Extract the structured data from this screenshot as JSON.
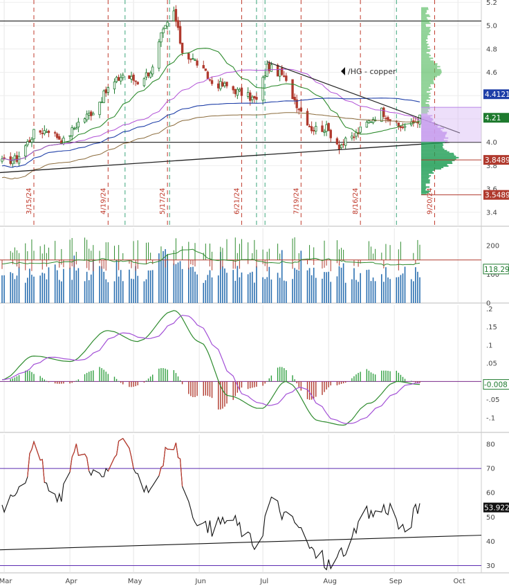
{
  "chart_data": [
    {
      "type": "candlestick",
      "annotation": "/HG - copper",
      "x_tick_labels": [
        "Mar",
        "Apr",
        "May",
        "Jun",
        "Jul",
        "Aug",
        "Sep",
        "Oct"
      ],
      "y_ticks": [
        3.4,
        3.6,
        3.8,
        4,
        4.2,
        4.4,
        4.6,
        4.8,
        5,
        5.2
      ],
      "ylim": [
        3.28,
        5.22
      ],
      "vertical_date_labels": [
        "3/15/24",
        "4/19/24",
        "5/17/24",
        "6/21/24",
        "7/19/24",
        "8/16/24",
        "9/20/24"
      ],
      "horizontal_levels": [
        5.04,
        4.0
      ],
      "price_tags": [
        {
          "label": "4.4121",
          "value": 4.4121,
          "color": "#1f3fa8"
        },
        {
          "label": "4.21",
          "value": 4.21,
          "color": "#1e7a2e"
        },
        {
          "label": "3.8489",
          "value": 3.8489,
          "color": "#b03a2e"
        },
        {
          "label": "3.5489",
          "value": 3.5489,
          "color": "#b03a2e"
        }
      ],
      "close_anchors": [
        {
          "date": "2024-02-29",
          "value": 3.83
        },
        {
          "date": "2024-03-07",
          "value": 3.86
        },
        {
          "date": "2024-03-15",
          "value": 4.08
        },
        {
          "date": "2024-03-22",
          "value": 4.11
        },
        {
          "date": "2024-03-29",
          "value": 4.01
        },
        {
          "date": "2024-04-05",
          "value": 4.17
        },
        {
          "date": "2024-04-12",
          "value": 4.27
        },
        {
          "date": "2024-04-19",
          "value": 4.46
        },
        {
          "date": "2024-04-26",
          "value": 4.58
        },
        {
          "date": "2024-05-03",
          "value": 4.52
        },
        {
          "date": "2024-05-10",
          "value": 4.63
        },
        {
          "date": "2024-05-14",
          "value": 4.91
        },
        {
          "date": "2024-05-20",
          "value": 5.12
        },
        {
          "date": "2024-05-24",
          "value": 4.78
        },
        {
          "date": "2024-05-31",
          "value": 4.68
        },
        {
          "date": "2024-06-07",
          "value": 4.51
        },
        {
          "date": "2024-06-14",
          "value": 4.48
        },
        {
          "date": "2024-06-21",
          "value": 4.42
        },
        {
          "date": "2024-06-28",
          "value": 4.36
        },
        {
          "date": "2024-07-03",
          "value": 4.65
        },
        {
          "date": "2024-07-10",
          "value": 4.58
        },
        {
          "date": "2024-07-17",
          "value": 4.33
        },
        {
          "date": "2024-07-24",
          "value": 4.12
        },
        {
          "date": "2024-07-31",
          "value": 4.12
        },
        {
          "date": "2024-08-06",
          "value": 3.97
        },
        {
          "date": "2024-08-13",
          "value": 4.05
        },
        {
          "date": "2024-08-20",
          "value": 4.18
        },
        {
          "date": "2024-08-26",
          "value": 4.27
        },
        {
          "date": "2024-09-03",
          "value": 4.13
        },
        {
          "date": "2024-09-09",
          "value": 4.15
        },
        {
          "date": "2024-09-13",
          "value": 4.21
        }
      ]
    },
    {
      "type": "bar",
      "y_ticks": [
        0,
        100,
        200
      ],
      "ylim": [
        0,
        260
      ],
      "reference_level": 150,
      "price_tag": {
        "label": "118.29",
        "value": 118.29
      }
    },
    {
      "type": "line",
      "y_ticks": [
        -0.1,
        -0.05,
        0,
        0.05,
        0.1,
        0.15,
        0.2
      ],
      "ylim": [
        -0.14,
        0.21
      ],
      "price_tag": {
        "label": "-0.008",
        "value": -0.008
      },
      "macd_anchors": [
        {
          "date": "2024-02-29",
          "value": 0.005
        },
        {
          "date": "2024-03-15",
          "value": 0.07
        },
        {
          "date": "2024-04-01",
          "value": 0.055
        },
        {
          "date": "2024-04-19",
          "value": 0.14
        },
        {
          "date": "2024-05-03",
          "value": 0.11
        },
        {
          "date": "2024-05-20",
          "value": 0.195
        },
        {
          "date": "2024-06-01",
          "value": 0.11
        },
        {
          "date": "2024-06-15",
          "value": -0.04
        },
        {
          "date": "2024-06-30",
          "value": -0.075
        },
        {
          "date": "2024-07-12",
          "value": 0.0
        },
        {
          "date": "2024-07-28",
          "value": -0.11
        },
        {
          "date": "2024-08-08",
          "value": -0.12
        },
        {
          "date": "2024-08-20",
          "value": -0.06
        },
        {
          "date": "2024-09-02",
          "value": 0.0
        },
        {
          "date": "2024-09-13",
          "value": -0.008
        }
      ]
    },
    {
      "type": "line",
      "y_ticks": [
        30,
        40,
        50,
        60,
        70,
        80
      ],
      "ylim": [
        27,
        84
      ],
      "overbought": 70,
      "oversold": 30,
      "price_tag": {
        "label": "53.922",
        "value": 53.922
      },
      "rsi_anchors": [
        {
          "date": "2024-02-29",
          "value": 55
        },
        {
          "date": "2024-03-10",
          "value": 65
        },
        {
          "date": "2024-03-15",
          "value": 78
        },
        {
          "date": "2024-03-25",
          "value": 56
        },
        {
          "date": "2024-04-05",
          "value": 78
        },
        {
          "date": "2024-04-15",
          "value": 66
        },
        {
          "date": "2024-04-26",
          "value": 79
        },
        {
          "date": "2024-05-08",
          "value": 62
        },
        {
          "date": "2024-05-20",
          "value": 80
        },
        {
          "date": "2024-05-28",
          "value": 52
        },
        {
          "date": "2024-06-05",
          "value": 45
        },
        {
          "date": "2024-06-15",
          "value": 49
        },
        {
          "date": "2024-06-28",
          "value": 39
        },
        {
          "date": "2024-07-05",
          "value": 56
        },
        {
          "date": "2024-07-15",
          "value": 48
        },
        {
          "date": "2024-07-26",
          "value": 35
        },
        {
          "date": "2024-08-02",
          "value": 30
        },
        {
          "date": "2024-08-09",
          "value": 37
        },
        {
          "date": "2024-08-19",
          "value": 51
        },
        {
          "date": "2024-08-30",
          "value": 54
        },
        {
          "date": "2024-09-05",
          "value": 44
        },
        {
          "date": "2024-09-13",
          "value": 53.922
        }
      ]
    }
  ]
}
